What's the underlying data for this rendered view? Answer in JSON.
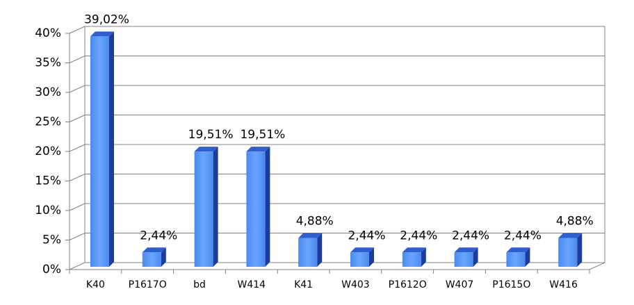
{
  "chart_data": {
    "type": "bar",
    "categories": [
      "K40",
      "P1617O",
      "bd",
      "W414",
      "K41",
      "W403",
      "P1612O",
      "W407",
      "P1615O",
      "W416"
    ],
    "values": [
      39.02,
      2.44,
      19.51,
      19.51,
      4.88,
      2.44,
      2.44,
      2.44,
      2.44,
      4.88
    ],
    "value_labels": [
      "39,02%",
      "2,44%",
      "19,51%",
      "19,51%",
      "4,88%",
      "2,44%",
      "2,44%",
      "2,44%",
      "2,44%",
      "4,88%"
    ],
    "color": "#4a8af0",
    "ylim": [
      0,
      40
    ],
    "yticks": [
      {
        "value": 0,
        "label": "0%"
      },
      {
        "value": 5,
        "label": "5%"
      },
      {
        "value": 10,
        "label": "10%"
      },
      {
        "value": 15,
        "label": "15%"
      },
      {
        "value": 20,
        "label": "20%"
      },
      {
        "value": 25,
        "label": "25%"
      },
      {
        "value": 30,
        "label": "30%"
      },
      {
        "value": 35,
        "label": "35%"
      },
      {
        "value": 40,
        "label": "40%"
      }
    ],
    "grid": true
  }
}
